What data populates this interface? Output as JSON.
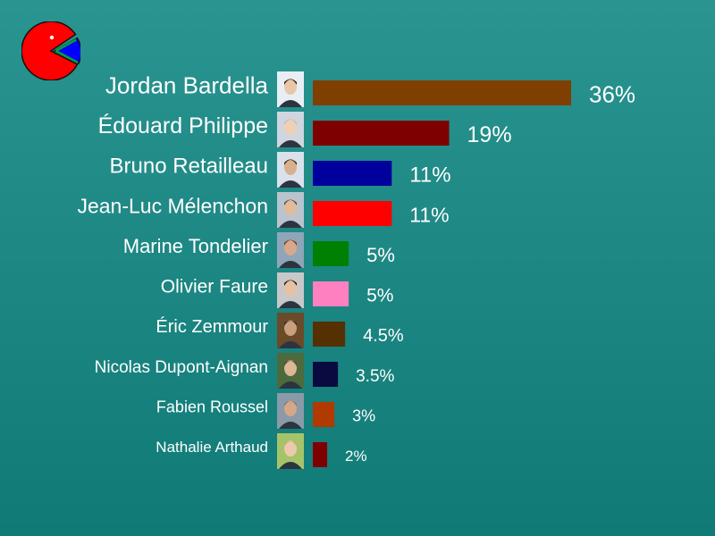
{
  "logo_icon": "pie-chart-logo-icon",
  "chart_data": {
    "type": "bar",
    "orientation": "horizontal",
    "categories": [
      "Jordan Bardella",
      "Édouard Philippe",
      "Bruno Retailleau",
      "Jean-Luc Mélenchon",
      "Marine Tondelier",
      "Olivier Faure",
      "Éric Zemmour",
      "Nicolas Dupont-Aignan",
      "Fabien Roussel",
      "Nathalie Arthaud"
    ],
    "values": [
      36,
      19,
      11,
      11,
      5,
      5,
      4.5,
      3.5,
      3,
      2
    ],
    "value_labels": [
      "36%",
      "19%",
      "11%",
      "11%",
      "5%",
      "5%",
      "4.5%",
      "3.5%",
      "3%",
      "2%"
    ],
    "colors": [
      "#7f3f00",
      "#7f0000",
      "#00009c",
      "#ff0000",
      "#008000",
      "#ff80c0",
      "#553000",
      "#0a0a40",
      "#b03a00",
      "#7f0000"
    ],
    "unit": "%",
    "xlim": [
      0,
      36
    ],
    "grid": false,
    "portrait_icons": [
      "person-portrait-icon",
      "person-portrait-icon",
      "person-portrait-icon",
      "person-portrait-icon",
      "person-portrait-icon",
      "person-portrait-icon",
      "person-portrait-icon",
      "person-portrait-icon",
      "person-portrait-icon",
      "person-portrait-icon"
    ]
  }
}
